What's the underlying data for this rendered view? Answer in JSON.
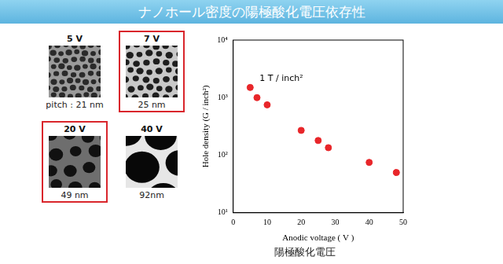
{
  "title": "ナノホール密度の陽極酸化電圧依存性",
  "panels": [
    {
      "voltage_label": "5 V",
      "pitch_label": "pitch : 21 nm",
      "pitch_nm": 21,
      "highlighted": false
    },
    {
      "voltage_label": "7 V",
      "pitch_label": "25 nm",
      "pitch_nm": 25,
      "highlighted": true
    },
    {
      "voltage_label": "20 V",
      "pitch_label": "49 nm",
      "pitch_nm": 49,
      "highlighted": true
    },
    {
      "voltage_label": "40 V",
      "pitch_label": "92nm",
      "pitch_nm": 92,
      "highlighted": false
    }
  ],
  "caption": "陽極酸化電圧",
  "chart_data": {
    "type": "scatter",
    "x": [
      5,
      7,
      10,
      20,
      25,
      28,
      40,
      48
    ],
    "values": [
      1500,
      1000,
      750,
      270,
      180,
      135,
      75,
      50
    ],
    "color": "#e8262a",
    "marker": "circle",
    "x_label": "Anodic voltage ( V )",
    "y_label": "Hole density (G / inch²)",
    "annotations": [
      "1 T / inch²"
    ],
    "xlim": [
      0,
      50
    ],
    "xticks": [
      0,
      10,
      20,
      30,
      40,
      50
    ],
    "ylim": [
      10,
      10000
    ],
    "yticks": [
      {
        "value": 10,
        "label": "10¹"
      },
      {
        "value": 100,
        "label": "10²"
      },
      {
        "value": 1000,
        "label": "10³"
      },
      {
        "value": 10000,
        "label": "10⁴"
      }
    ],
    "log": "y",
    "grid": false
  }
}
